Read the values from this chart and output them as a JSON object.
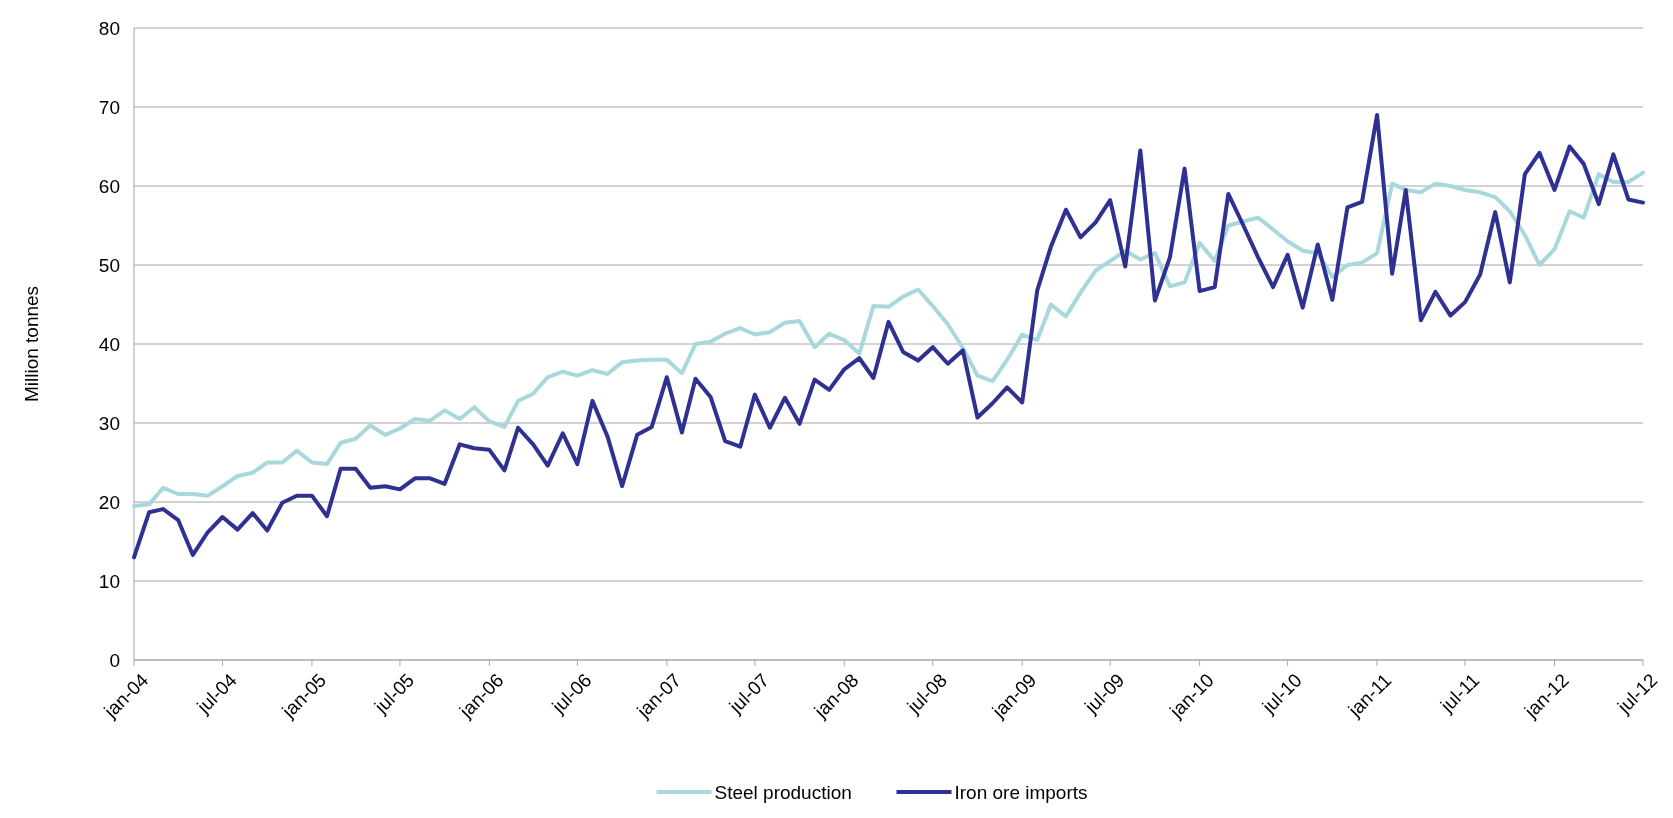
{
  "chart_data": {
    "type": "line",
    "ylabel": "Million tonnes",
    "ylim": [
      0,
      80
    ],
    "yticks": [
      0,
      10,
      20,
      30,
      40,
      50,
      60,
      70,
      80
    ],
    "grid": "y",
    "legend": "bottom",
    "line_style": "solid",
    "marker": "none",
    "xlim": [
      "2004-01",
      "2012-07"
    ],
    "xticks": [
      {
        "value": "2004-01",
        "label": "jan-04"
      },
      {
        "value": "2004-07",
        "label": "jul-04"
      },
      {
        "value": "2005-01",
        "label": "jan-05"
      },
      {
        "value": "2005-07",
        "label": "jul-05"
      },
      {
        "value": "2006-01",
        "label": "jan-06"
      },
      {
        "value": "2006-07",
        "label": "jul-06"
      },
      {
        "value": "2007-01",
        "label": "jan-07"
      },
      {
        "value": "2007-07",
        "label": "jul-07"
      },
      {
        "value": "2008-01",
        "label": "jan-08"
      },
      {
        "value": "2008-07",
        "label": "jul-08"
      },
      {
        "value": "2009-01",
        "label": "jan-09"
      },
      {
        "value": "2009-07",
        "label": "jul-09"
      },
      {
        "value": "2010-01",
        "label": "jan-10"
      },
      {
        "value": "2010-07",
        "label": "jul-10"
      },
      {
        "value": "2011-01",
        "label": "jan-11"
      },
      {
        "value": "2011-07",
        "label": "jul-11"
      },
      {
        "value": "2012-01",
        "label": "jan-12"
      },
      {
        "value": "2012-07",
        "label": "jul-12"
      }
    ],
    "x": [
      "2004-01",
      "2004-02",
      "2004-03",
      "2004-04",
      "2004-05",
      "2004-06",
      "2004-07",
      "2004-08",
      "2004-09",
      "2004-10",
      "2004-11",
      "2004-12",
      "2005-01",
      "2005-02",
      "2005-03",
      "2005-04",
      "2005-05",
      "2005-06",
      "2005-07",
      "2005-08",
      "2005-09",
      "2005-10",
      "2005-11",
      "2005-12",
      "2006-01",
      "2006-02",
      "2006-03",
      "2006-04",
      "2006-05",
      "2006-06",
      "2006-07",
      "2006-08",
      "2006-09",
      "2006-10",
      "2006-11",
      "2006-12",
      "2007-01",
      "2007-02",
      "2007-03",
      "2007-04",
      "2007-05",
      "2007-06",
      "2007-07",
      "2007-08",
      "2007-09",
      "2007-10",
      "2007-11",
      "2007-12",
      "2008-01",
      "2008-02",
      "2008-03",
      "2008-04",
      "2008-05",
      "2008-06",
      "2008-07",
      "2008-08",
      "2008-09",
      "2008-10",
      "2008-11",
      "2008-12",
      "2009-01",
      "2009-02",
      "2009-03",
      "2009-04",
      "2009-05",
      "2009-06",
      "2009-07",
      "2009-08",
      "2009-09",
      "2009-10",
      "2009-11",
      "2009-12",
      "2010-01",
      "2010-02",
      "2010-03",
      "2010-04",
      "2010-05",
      "2010-06",
      "2010-07",
      "2010-08",
      "2010-09",
      "2010-10",
      "2010-11",
      "2010-12",
      "2011-01",
      "2011-02",
      "2011-03",
      "2011-04",
      "2011-05",
      "2011-06",
      "2011-07",
      "2011-08",
      "2011-09",
      "2011-10",
      "2011-11",
      "2011-12",
      "2012-01",
      "2012-02",
      "2012-03",
      "2012-04",
      "2012-05",
      "2012-06",
      "2012-07"
    ],
    "series": [
      {
        "name": "Steel production",
        "color": "#a8d8dc",
        "values": [
          19.5,
          19.7,
          21.8,
          21,
          21,
          20.8,
          22,
          23.3,
          23.7,
          25,
          25,
          26.5,
          25,
          24.8,
          27.5,
          28,
          29.7,
          28.5,
          29.3,
          30.5,
          30.3,
          31.6,
          30.5,
          32,
          30.2,
          29.5,
          32.8,
          33.7,
          35.8,
          36.5,
          36,
          36.7,
          36.2,
          37.7,
          37.9,
          38,
          38,
          36.3,
          40,
          40.3,
          41.3,
          42,
          41.2,
          41.5,
          42.7,
          42.9,
          39.6,
          41.3,
          40.5,
          38.8,
          44.8,
          44.7,
          46,
          46.9,
          44.8,
          42.5,
          39.5,
          36,
          35.3,
          38,
          41.2,
          40.5,
          45,
          43.5,
          46.5,
          49.3,
          50.5,
          51.8,
          50.7,
          51.5,
          47.3,
          47.8,
          52.8,
          50.5,
          55,
          55.5,
          56,
          54.5,
          53,
          51.8,
          51.5,
          48.5,
          50,
          50.3,
          51.5,
          60.3,
          59.5,
          59.2,
          60.3,
          60,
          59.5,
          59.2,
          58.6,
          56.8,
          53.8,
          50,
          52,
          56.8,
          56,
          61.5,
          60.5,
          60.5,
          61.7
        ]
      },
      {
        "name": "Iron ore imports",
        "color": "#2e3192",
        "values": [
          13,
          18.7,
          19.1,
          17.7,
          13.3,
          16.2,
          18.1,
          16.5,
          18.6,
          16.4,
          19.9,
          20.8,
          20.8,
          18.2,
          24.2,
          24.2,
          21.8,
          22,
          21.6,
          23,
          23,
          22.3,
          27.3,
          26.8,
          26.6,
          24,
          29.4,
          27.3,
          24.6,
          28.7,
          24.8,
          32.8,
          28.3,
          22,
          28.5,
          29.5,
          35.8,
          28.8,
          35.6,
          33.3,
          27.7,
          27,
          33.6,
          29.4,
          33.2,
          29.9,
          35.5,
          34.2,
          36.8,
          38.2,
          35.7,
          42.8,
          39,
          37.9,
          39.6,
          37.5,
          39.2,
          30.7,
          32.5,
          34.5,
          32.6,
          46.8,
          52.3,
          57,
          53.5,
          55.4,
          58.2,
          49.8,
          64.5,
          45.5,
          51,
          62.2,
          46.7,
          47.2,
          59,
          55,
          51,
          47.2,
          51.3,
          44.6,
          52.6,
          45.6,
          57.3,
          58,
          69,
          48.9,
          59.5,
          43,
          46.6,
          43.6,
          45.3,
          48.8,
          56.7,
          47.8,
          61.5,
          64.2,
          59.5,
          65,
          62.8,
          57.7,
          64,
          58.3,
          57.9
        ]
      }
    ]
  }
}
